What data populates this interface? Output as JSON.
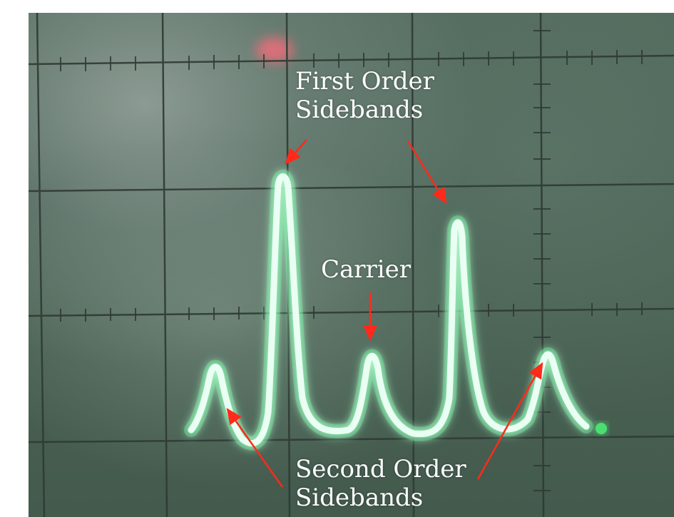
{
  "annotations": {
    "first_order": {
      "line1": "First Order",
      "line2": "Sidebands"
    },
    "carrier": {
      "text": "Carrier"
    },
    "second_order": {
      "line1": "Second Order",
      "line2": "Sidebands"
    }
  },
  "colors": {
    "trace": "#eafff3",
    "trace_glow": "#49ff9a",
    "arrow": "#ff2a1a",
    "screen": "#4b6357",
    "grid": "#2f3a33"
  }
}
